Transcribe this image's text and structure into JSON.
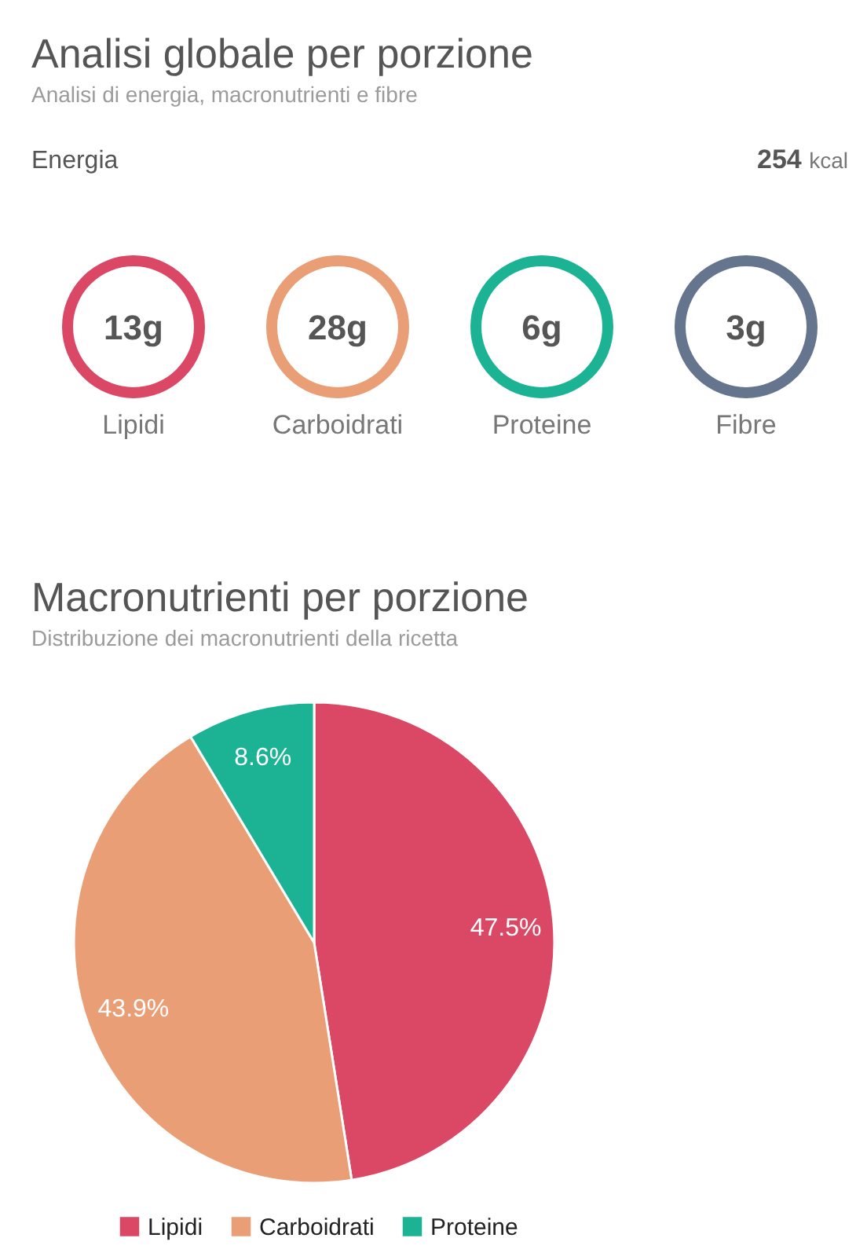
{
  "chart_data": [
    {
      "type": "other",
      "title": "Analisi globale per porzione",
      "subtitle": "Analisi di energia, macronutrienti e fibre",
      "annotations": [
        "Energia",
        "254 kcal"
      ],
      "categories": [
        "Lipidi",
        "Carboidrati",
        "Proteine",
        "Fibre"
      ],
      "values": [
        13,
        28,
        6,
        3
      ],
      "value_labels": [
        "13g",
        "28g",
        "6g",
        "3g"
      ],
      "colors": [
        "#db4865",
        "#e99e75",
        "#1bb394",
        "#65758e"
      ]
    },
    {
      "type": "pie",
      "title": "Macronutrienti per porzione",
      "subtitle": "Distribuzione dei macronutrienti della ricetta",
      "categories": [
        "Lipidi",
        "Carboidrati",
        "Proteine"
      ],
      "values": [
        47.5,
        43.9,
        8.6
      ],
      "value_labels": [
        "47.5%",
        "43.9%",
        "8.6%"
      ],
      "colors": [
        "#db4865",
        "#e99e75",
        "#1bb394"
      ],
      "legend": "bottom"
    }
  ]
}
